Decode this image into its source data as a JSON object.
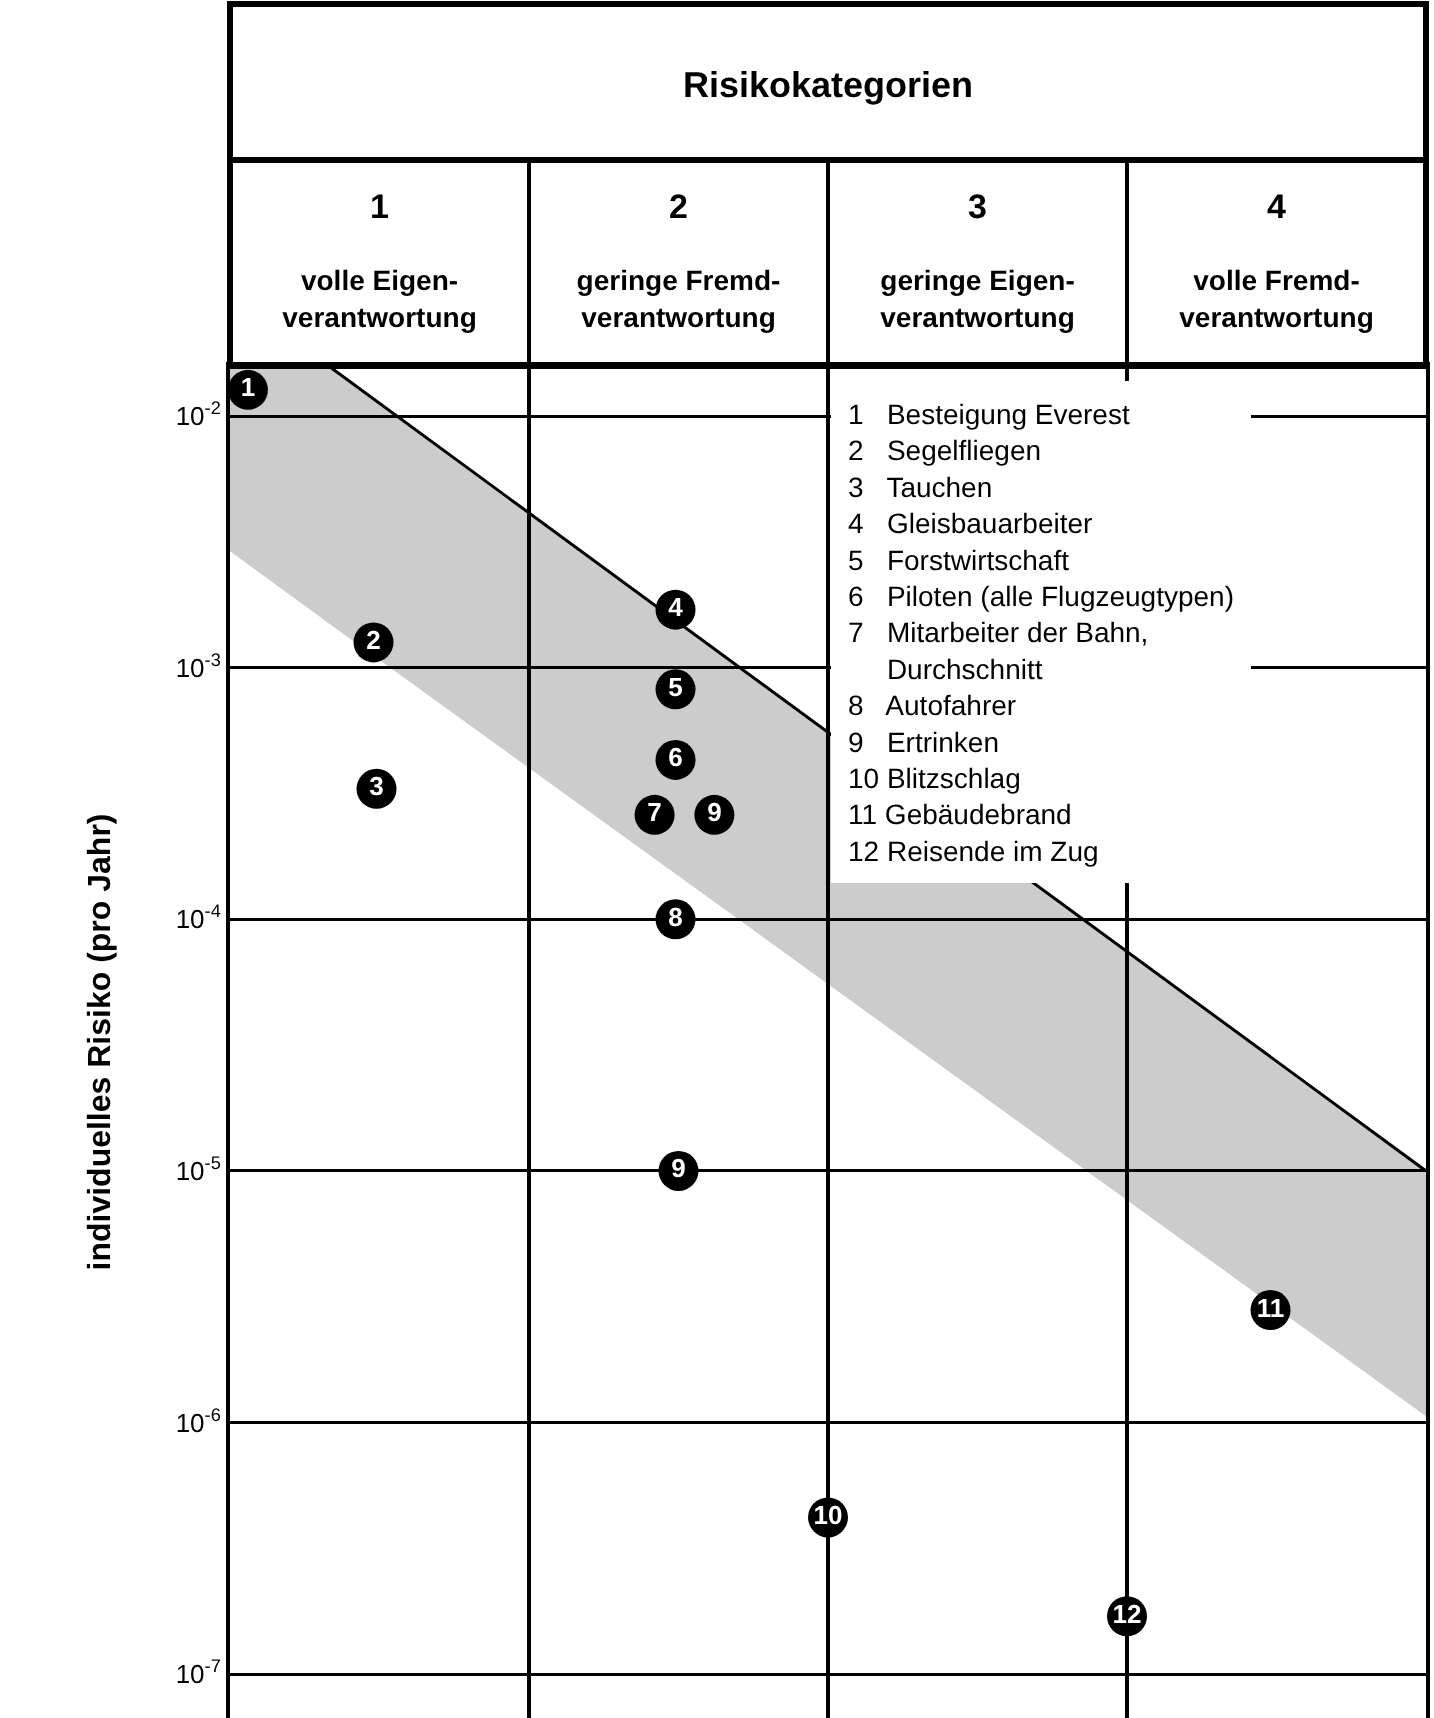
{
  "chart_data": {
    "type": "scatter",
    "title": "Risikokategorien",
    "ylabel": "individuelles Risiko (pro Jahr)",
    "xlim": [
      0,
      4
    ],
    "xticks": [
      {
        "value": 0.5,
        "label": "1\nvolle Eigen-\nverantwortung"
      },
      {
        "value": 1.5,
        "label": "2\ngeringe Fremd-\nverantwortung"
      },
      {
        "value": 2.5,
        "label": "3\ngeringe Eigen-\nverantwortung"
      },
      {
        "value": 3.5,
        "label": "4\nvolle Fremd-\nverantwortung"
      }
    ],
    "ylim": [
      6.7e-08,
      0.0158
    ],
    "yticks": [
      {
        "value": 0.01,
        "label": "10$^{-2}$"
      },
      {
        "value": 0.001,
        "label": "10$^{-3}$"
      },
      {
        "value": 0.0001,
        "label": "10$^{-4}$"
      },
      {
        "value": 1e-05,
        "label": "10$^{-5}$"
      },
      {
        "value": 1e-06,
        "label": "10$^{-6}$"
      },
      {
        "value": 1e-07,
        "label": "10$^{-7}$"
      }
    ],
    "log": "y",
    "grid": "y",
    "marker": "circle",
    "ref_lines": [
      {
        "axis": "x",
        "value": 1,
        "color": "#000000"
      },
      {
        "axis": "x",
        "value": 2,
        "color": "#000000"
      },
      {
        "axis": "x",
        "value": 3,
        "color": "#000000"
      }
    ],
    "series": [
      {
        "type": "line",
        "marker": "none",
        "color": "#000000",
        "x": [
          0,
          0.33,
          4
        ],
        "values": [
          null,
          0.0158,
          1e-05
        ],
        "upper": [
          0.0158,
          0.0158,
          1e-05
        ],
        "lower": [
          0.0029,
          0.0015,
          1.06e-06
        ]
      },
      {
        "name": "1",
        "color": "#000000",
        "x": [
          0.06
        ],
        "values": [
          0.0127
        ]
      },
      {
        "name": "2",
        "color": "#000000",
        "x": [
          0.48
        ],
        "values": [
          0.00126
        ]
      },
      {
        "name": "3",
        "color": "#000000",
        "x": [
          0.49
        ],
        "values": [
          0.00033
        ]
      },
      {
        "name": "4",
        "color": "#000000",
        "x": [
          1.49
        ],
        "values": [
          0.0017
        ]
      },
      {
        "name": "5",
        "color": "#000000",
        "x": [
          1.49
        ],
        "values": [
          0.00082
        ]
      },
      {
        "name": "6",
        "color": "#000000",
        "x": [
          1.49
        ],
        "values": [
          0.00043
        ]
      },
      {
        "name": "7",
        "color": "#000000",
        "x": [
          1.42
        ],
        "values": [
          0.00026
        ]
      },
      {
        "name": "8",
        "color": "#000000",
        "x": [
          1.49
        ],
        "values": [
          0.0001
        ]
      },
      {
        "name": "9",
        "color": "#000000",
        "x": [
          1.62,
          1.5
        ],
        "values": [
          0.00026,
          1e-05
        ]
      },
      {
        "name": "10",
        "color": "#000000",
        "x": [
          2.0
        ],
        "values": [
          4.2e-07
        ]
      },
      {
        "name": "11",
        "color": "#000000",
        "x": [
          3.48
        ],
        "values": [
          2.8e-06
        ]
      },
      {
        "name": "12",
        "color": "#000000",
        "x": [
          3.0
        ],
        "values": [
          1.7e-07
        ]
      }
    ],
    "annotations": [
      "1   Besteigung Everest",
      "2   Segelfliegen",
      "3   Tauchen",
      "4   Gleisbauarbeiter",
      "5   Forstwirtschaft",
      "6   Piloten (alle Flugzeugtypen)",
      "7   Mitarbeiter der Bahn,\n     Durchschnitt",
      "8   Autofahrer",
      "9   Ertrinken",
      "10 Blitzschlag",
      "11 Gebäudebrand",
      "12 Reisende im Zug"
    ]
  }
}
